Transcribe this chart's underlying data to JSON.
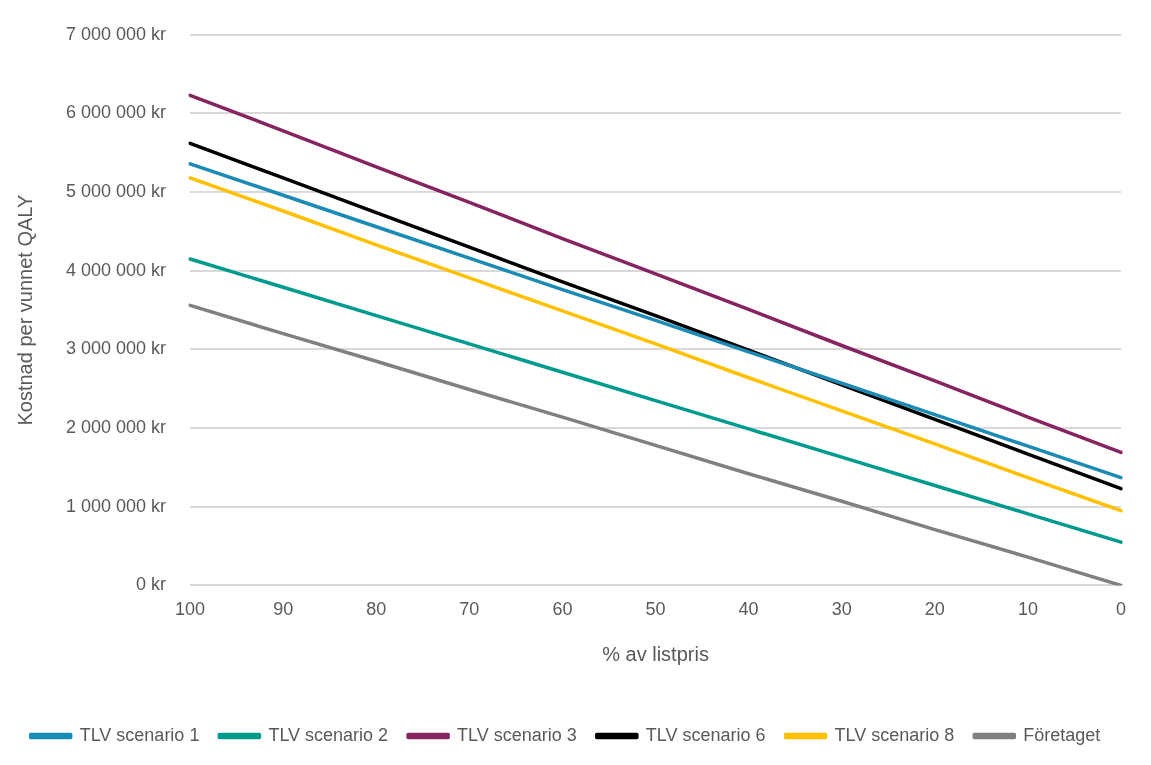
{
  "chart_data": {
    "type": "line",
    "xlabel": "% av listpris",
    "ylabel": "Kostnad per vunnet QALY",
    "categories": [
      "100",
      "90",
      "80",
      "70",
      "60",
      "50",
      "40",
      "30",
      "20",
      "10",
      "0"
    ],
    "ylim": [
      0,
      7000000
    ],
    "yticks": [
      {
        "value": 0,
        "label": "0 kr"
      },
      {
        "value": 1000000,
        "label": "1 000 000 kr"
      },
      {
        "value": 2000000,
        "label": "2 000 000 kr"
      },
      {
        "value": 3000000,
        "label": "3 000 000 kr"
      },
      {
        "value": 4000000,
        "label": "4 000 000 kr"
      },
      {
        "value": 5000000,
        "label": "5 000 000 kr"
      },
      {
        "value": 6000000,
        "label": "6 000 000 kr"
      },
      {
        "value": 7000000,
        "label": "7 000 000 kr"
      }
    ],
    "grid": "y",
    "legend": "bottom",
    "marker": "none",
    "line_style": "solid",
    "series": [
      {
        "name": "TLV scenario 1",
        "color": "#1b8bb5",
        "values": [
          5360000,
          4960000,
          4560000,
          4160000,
          3760000,
          3370000,
          2970000,
          2570000,
          2170000,
          1770000,
          1370000
        ]
      },
      {
        "name": "TLV scenario 2",
        "color": "#009b8d",
        "values": [
          4150000,
          3790000,
          3430000,
          3070000,
          2710000,
          2350000,
          1990000,
          1630000,
          1270000,
          910000,
          550000
        ]
      },
      {
        "name": "TLV scenario 3",
        "color": "#85245f",
        "values": [
          6230000,
          5780000,
          5320000,
          4870000,
          4410000,
          3960000,
          3510000,
          3050000,
          2600000,
          2140000,
          1690000
        ]
      },
      {
        "name": "TLV scenario 6",
        "color": "#000000",
        "values": [
          5620000,
          5180000,
          4740000,
          4300000,
          3860000,
          3430000,
          2990000,
          2550000,
          2110000,
          1670000,
          1230000
        ]
      },
      {
        "name": "TLV scenario 8",
        "color": "#ffc000",
        "values": [
          5180000,
          4760000,
          4330000,
          3910000,
          3490000,
          3070000,
          2640000,
          2220000,
          1800000,
          1370000,
          950000
        ]
      },
      {
        "name": "Företaget",
        "color": "#808080",
        "values": [
          3560000,
          3200000,
          2850000,
          2490000,
          2140000,
          1780000,
          1420000,
          1070000,
          710000,
          360000,
          0
        ]
      }
    ]
  }
}
